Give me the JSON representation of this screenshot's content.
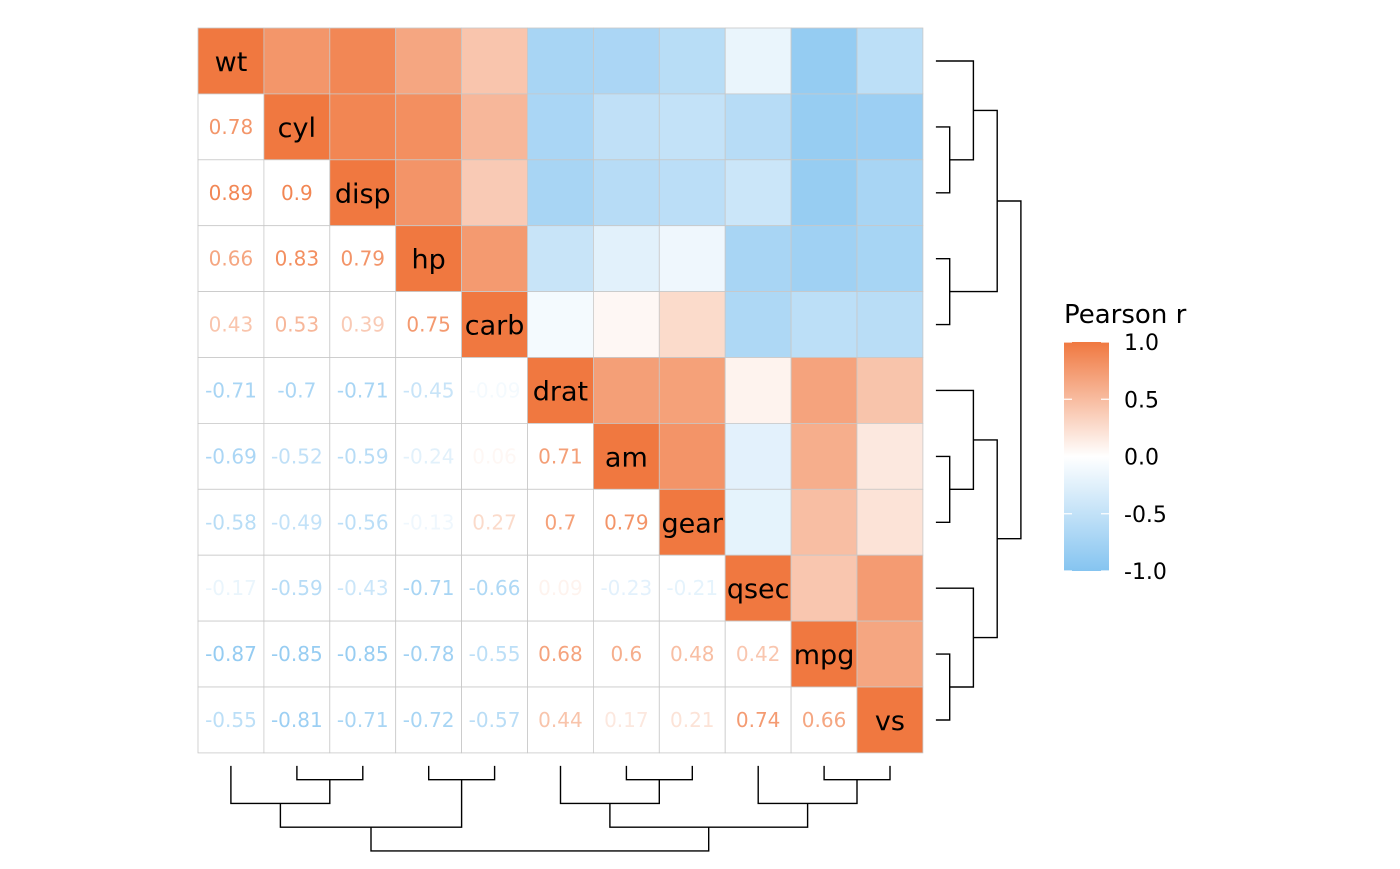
{
  "chart_data": {
    "type": "heatmap",
    "title": "",
    "variables": [
      "wt",
      "cyl",
      "disp",
      "hp",
      "carb",
      "drat",
      "am",
      "gear",
      "qsec",
      "mpg",
      "vs"
    ],
    "matrix": [
      [
        1.0,
        0.78,
        0.89,
        0.66,
        0.43,
        -0.71,
        -0.69,
        -0.58,
        -0.17,
        -0.87,
        -0.55
      ],
      [
        0.78,
        1.0,
        0.9,
        0.83,
        0.53,
        -0.7,
        -0.52,
        -0.49,
        -0.59,
        -0.85,
        -0.81
      ],
      [
        0.89,
        0.9,
        1.0,
        0.79,
        0.39,
        -0.71,
        -0.59,
        -0.56,
        -0.43,
        -0.85,
        -0.71
      ],
      [
        0.66,
        0.83,
        0.79,
        1.0,
        0.75,
        -0.45,
        -0.24,
        -0.13,
        -0.71,
        -0.78,
        -0.72
      ],
      [
        0.43,
        0.53,
        0.39,
        0.75,
        1.0,
        -0.09,
        0.06,
        0.27,
        -0.66,
        -0.55,
        -0.57
      ],
      [
        -0.71,
        -0.7,
        -0.71,
        -0.45,
        -0.09,
        1.0,
        0.71,
        0.7,
        0.09,
        0.68,
        0.44
      ],
      [
        -0.69,
        -0.52,
        -0.59,
        -0.24,
        0.06,
        0.71,
        1.0,
        0.79,
        -0.23,
        0.6,
        0.17
      ],
      [
        -0.58,
        -0.49,
        -0.56,
        -0.13,
        0.27,
        0.7,
        0.79,
        1.0,
        -0.21,
        0.48,
        0.21
      ],
      [
        -0.17,
        -0.59,
        -0.43,
        -0.71,
        -0.66,
        0.09,
        -0.23,
        -0.21,
        1.0,
        0.42,
        0.74
      ],
      [
        -0.87,
        -0.85,
        -0.85,
        -0.78,
        -0.55,
        0.68,
        0.6,
        0.48,
        0.42,
        1.0,
        0.66
      ],
      [
        -0.55,
        -0.81,
        -0.71,
        -0.72,
        -0.57,
        0.44,
        0.17,
        0.21,
        0.74,
        0.66,
        1.0
      ]
    ],
    "lower_triangle": "values",
    "upper_triangle": "color",
    "diagonal": "variable names",
    "color_scale": {
      "low": "#85C4F0",
      "mid": "#FFFFFF",
      "high": "#F07840",
      "limits": [
        -1,
        1
      ]
    },
    "legend": {
      "title": "Pearson r",
      "ticks": [
        "1.0",
        "0.5",
        "0.0",
        "-0.5",
        "-1.0"
      ],
      "tick_values": [
        1.0,
        0.5,
        0.0,
        -0.5,
        -1.0
      ],
      "placement": "right"
    },
    "dendrogram": {
      "placement": [
        "right",
        "bottom"
      ],
      "merges": [
        [
          0,
          1
        ],
        [
          2,
          3
        ],
        [
          4,
          5
        ],
        [
          6,
          7
        ],
        [
          8,
          9
        ],
        [
          10,
          11
        ],
        [
          12,
          13
        ],
        [
          14,
          15
        ],
        [
          16,
          17
        ],
        [
          18,
          19
        ]
      ],
      "leaves": [
        "wt",
        "cyl",
        "disp",
        "hp",
        "carb",
        "drat",
        "am",
        "gear",
        "qsec",
        "mpg",
        "vs"
      ]
    }
  }
}
